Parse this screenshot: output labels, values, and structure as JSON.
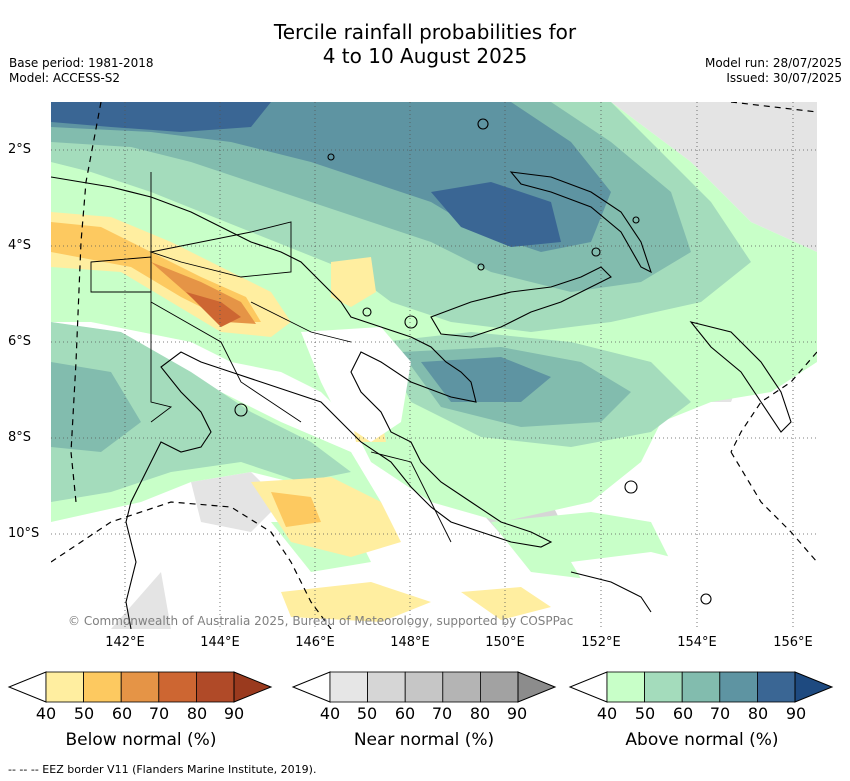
{
  "title": {
    "line1": "Tercile rainfall probabilities for",
    "line2": "4 to 10 August 2025"
  },
  "meta": {
    "base_period": "Base period: 1981-2018",
    "model": "Model: ACCESS-S2",
    "model_run": "Model run: 28/07/2025",
    "issued": "Issued: 30/07/2025"
  },
  "axes": {
    "longitudes": [
      "142°E",
      "144°E",
      "146°E",
      "148°E",
      "150°E",
      "152°E",
      "154°E",
      "156°E"
    ],
    "latitudes": [
      "2°S",
      "4°S",
      "6°S",
      "8°S",
      "10°S"
    ]
  },
  "copyright": "© Commonwealth of Australia 2025, Bureau of Meteorology, supported by COSPPac",
  "colorbars": [
    {
      "label": "Below normal (%)",
      "ticks": [
        "40",
        "50",
        "60",
        "70",
        "80",
        "90"
      ],
      "colors": [
        "#ffeea0",
        "#fdc960",
        "#e59446",
        "#cd6632",
        "#b04a28",
        "#9a3a1e"
      ]
    },
    {
      "label": "Near normal (%)",
      "ticks": [
        "40",
        "50",
        "60",
        "70",
        "80",
        "90"
      ],
      "colors": [
        "#e6e6e6",
        "#d6d6d6",
        "#c6c6c6",
        "#b4b4b4",
        "#a2a2a2",
        "#8c8c8c"
      ]
    },
    {
      "label": "Above normal (%)",
      "ticks": [
        "40",
        "50",
        "60",
        "70",
        "80",
        "90"
      ],
      "colors": [
        "#c8ffc8",
        "#a4dcbc",
        "#82bcae",
        "#5e94a2",
        "#3a6694",
        "#1e4a80"
      ]
    }
  ],
  "eez_note": "--  --  -- EEZ border V11 (Flanders Marine Institute, 2019).",
  "colors": {
    "background": "#ffffff",
    "coastline": "#000000",
    "grid": "#555555"
  }
}
